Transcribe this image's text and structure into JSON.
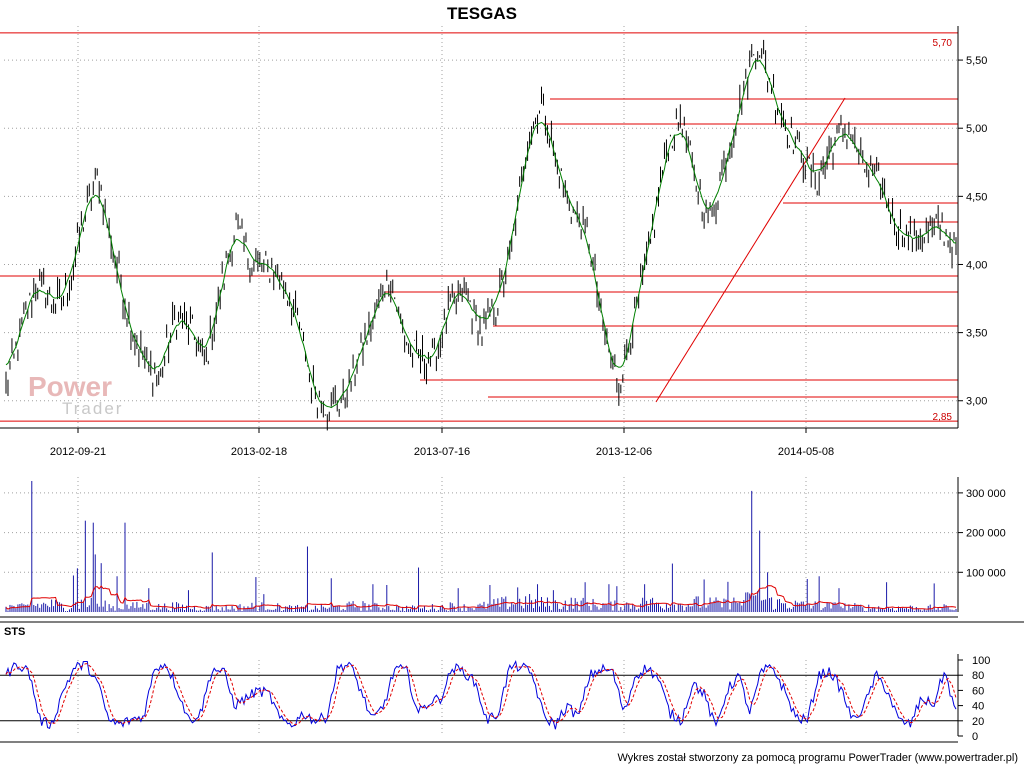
{
  "chart_data": [
    {
      "type": "candlestick",
      "title": "TESGAS",
      "x_tick_labels": [
        "2012-09-21",
        "2013-02-18",
        "2013-07-16",
        "2013-12-06",
        "2014-05-08"
      ],
      "ylim": [
        2.8,
        5.75
      ],
      "y_ticks": [
        3.0,
        3.5,
        4.0,
        4.5,
        5.0,
        5.5
      ],
      "y_tick_labels": [
        "3,00",
        "3,50",
        "4,00",
        "4,50",
        "5,00",
        "5,50"
      ],
      "grid": true,
      "level_labels": [
        "5,70",
        "2,85"
      ],
      "max_level": 5.7,
      "min_level": 2.85,
      "close_anchors": [
        3.1,
        3.5,
        3.9,
        3.7,
        3.8,
        4.3,
        4.65,
        4.1,
        3.6,
        3.3,
        3.15,
        3.6,
        3.55,
        3.25,
        3.8,
        4.3,
        4.0,
        4.0,
        3.9,
        3.6,
        3.1,
        2.95,
        3.0,
        3.3,
        3.6,
        3.95,
        3.45,
        3.3,
        3.3,
        3.7,
        3.8,
        3.5,
        3.7,
        4.1,
        4.9,
        5.2,
        4.7,
        4.4,
        4.2,
        3.5,
        3.1,
        3.6,
        4.1,
        4.8,
        5.1,
        4.6,
        4.3,
        4.8,
        5.2,
        5.65,
        5.3,
        5.0,
        4.8,
        4.6,
        4.9,
        5.0,
        4.7,
        4.6,
        4.3,
        4.2,
        4.2,
        4.3,
        4.1
      ]
    },
    {
      "type": "bar",
      "title": "",
      "ylim": [
        0,
        340000
      ],
      "y_ticks": [
        100000,
        200000,
        300000
      ],
      "y_tick_labels": [
        "100 000",
        "200 000",
        "300 000"
      ],
      "volume_base": [
        22000,
        18000,
        26000,
        30000,
        20000,
        35000,
        30000,
        18000,
        20000,
        24000,
        19000,
        22000,
        16000,
        15000,
        14000,
        17000,
        21000,
        24000,
        17000,
        15000,
        14000,
        18000,
        20000,
        26000,
        20000,
        16000,
        15000,
        14000,
        18000,
        22000,
        18000,
        21000,
        30000,
        36000,
        40000,
        33000,
        30000,
        34000,
        30000,
        26000,
        24000,
        30000,
        36000,
        30000,
        28000,
        35000,
        32000,
        30000,
        40000,
        52000,
        36000,
        30000,
        26000,
        24000,
        22000,
        20000,
        18000,
        16000,
        15000,
        16000,
        15000,
        17000,
        14000
      ],
      "volume_spikes": [
        [
          13,
          330000
        ],
        [
          34,
          92000
        ],
        [
          36,
          110000
        ],
        [
          40,
          230000
        ],
        [
          44,
          225000
        ],
        [
          45,
          145000
        ],
        [
          48,
          123000
        ],
        [
          56,
          90000
        ],
        [
          60,
          225000
        ],
        [
          72,
          60000
        ],
        [
          92,
          55000
        ],
        [
          104,
          150000
        ],
        [
          126,
          88000
        ],
        [
          130,
          45000
        ],
        [
          152,
          165000
        ],
        [
          164,
          85000
        ],
        [
          185,
          70000
        ],
        [
          192,
          68000
        ],
        [
          208,
          112000
        ],
        [
          228,
          60000
        ],
        [
          244,
          68000
        ],
        [
          258,
          62000
        ],
        [
          268,
          70000
        ],
        [
          276,
          55000
        ],
        [
          292,
          75000
        ],
        [
          304,
          70000
        ],
        [
          308,
          65000
        ],
        [
          322,
          70000
        ],
        [
          336,
          122000
        ],
        [
          352,
          82000
        ],
        [
          364,
          76000
        ],
        [
          376,
          305000
        ],
        [
          380,
          205000
        ],
        [
          384,
          100000
        ],
        [
          404,
          83000
        ],
        [
          410,
          90000
        ],
        [
          420,
          60000
        ],
        [
          444,
          75000
        ],
        [
          468,
          72000
        ]
      ],
      "series": [
        {
          "name": "",
          "color": "#1a1aa8",
          "kind": "bars"
        },
        {
          "name": "",
          "color": "#e00000",
          "kind": "line"
        }
      ]
    },
    {
      "type": "line",
      "title": "STS",
      "ylim": [
        0,
        100
      ],
      "y_ticks": [
        0,
        20,
        40,
        60,
        80,
        100
      ],
      "y_tick_labels": [
        "0",
        "20",
        "40",
        "60",
        "80",
        "100"
      ],
      "reference_levels": [
        20,
        80
      ],
      "sts_anchors": [
        80,
        95,
        85,
        20,
        15,
        60,
        90,
        95,
        70,
        20,
        15,
        22,
        25,
        90,
        95,
        60,
        20,
        30,
        88,
        85,
        40,
        50,
        60,
        55,
        20,
        15,
        30,
        20,
        25,
        90,
        95,
        60,
        20,
        40,
        90,
        85,
        30,
        45,
        50,
        90,
        85,
        70,
        20,
        30,
        90,
        92,
        80,
        25,
        15,
        40,
        25,
        80,
        88,
        85,
        30,
        80,
        90,
        75,
        30,
        20,
        70,
        55,
        10,
        60,
        80,
        30,
        85,
        90,
        60,
        25,
        20,
        80,
        85,
        60,
        20,
        40,
        80,
        60,
        20,
        15,
        50,
        40,
        85,
        30
      ],
      "series": [
        {
          "name": "",
          "color": "#0000dd"
        },
        {
          "name": "",
          "color": "#e00000"
        }
      ]
    }
  ],
  "colors": {
    "grid": "#a0a0a0",
    "level_line": "#e00000",
    "price_line": "#000000",
    "smooth_line": "#008000",
    "frame": "#000000"
  },
  "watermark": {
    "line1": "Power",
    "line2": "Trader"
  },
  "footer": "Wykres został stworzony za pomocą programu PowerTrader (www.powertrader.pl)"
}
